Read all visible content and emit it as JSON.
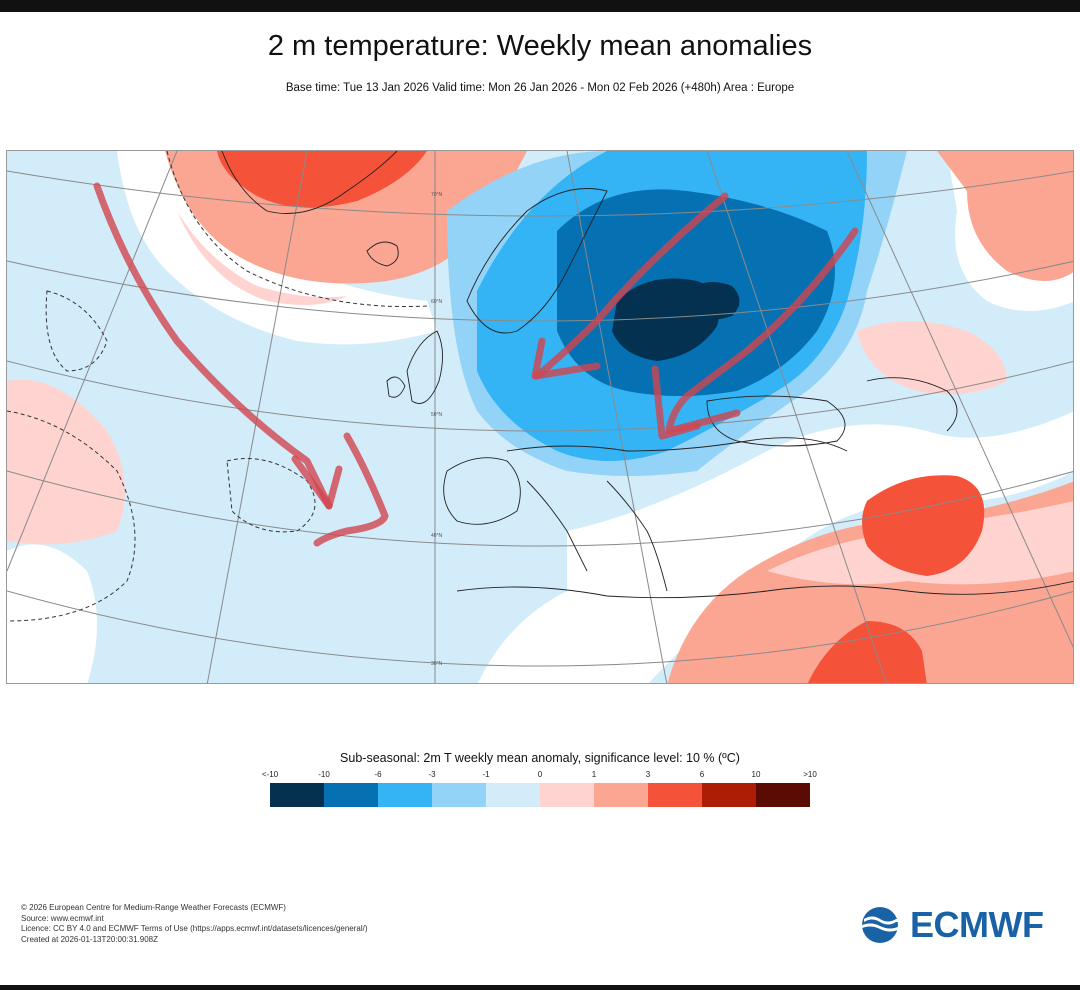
{
  "header": {
    "title": "2 m temperature: Weekly mean anomalies",
    "subtitle": "Base time: Tue 13 Jan 2026 Valid time: Mon 26 Jan 2026 - Mon 02 Feb 2026 (+480h) Area : Europe"
  },
  "map": {
    "region": "Europe",
    "anomaly_pattern": "Cold anomaly core over eastern Europe / western Russia; warm anomalies over Greenland, Iceland, North Africa and the Middle East",
    "annotation_arrows": "Hand-drawn red arrows indicating cold flow into Europe and the Iberian Peninsula",
    "latitude_labels": [
      "70°N",
      "60°N",
      "50°N",
      "40°N",
      "30°N"
    ]
  },
  "legend": {
    "title": "Sub-seasonal: 2m T weekly mean anomaly, significance level: 10 % (ºC)",
    "ticks": [
      "<-10",
      "-10",
      "-6",
      "-3",
      "-1",
      "0",
      "1",
      "3",
      "6",
      "10",
      ">10"
    ],
    "colors": [
      "#03314f",
      "#0671b2",
      "#34b4f5",
      "#93d3f7",
      "#d3ecfa",
      "#ffd4d0",
      "#fba593",
      "#f5523a",
      "#ad1c05",
      "#5a0b03"
    ]
  },
  "footer": {
    "copyright": "© 2026 European Centre for Medium-Range Weather Forecasts (ECMWF)",
    "source": "Source: www.ecmwf.int",
    "licence": "Licence: CC BY 4.0 and ECMWF Terms of Use (https://apps.ecmwf.int/datasets/licences/general/)",
    "created": "Created at 2026-01-13T20:00:31.908Z"
  },
  "logo": {
    "text": "ECMWF",
    "color": "#1a62a6"
  }
}
